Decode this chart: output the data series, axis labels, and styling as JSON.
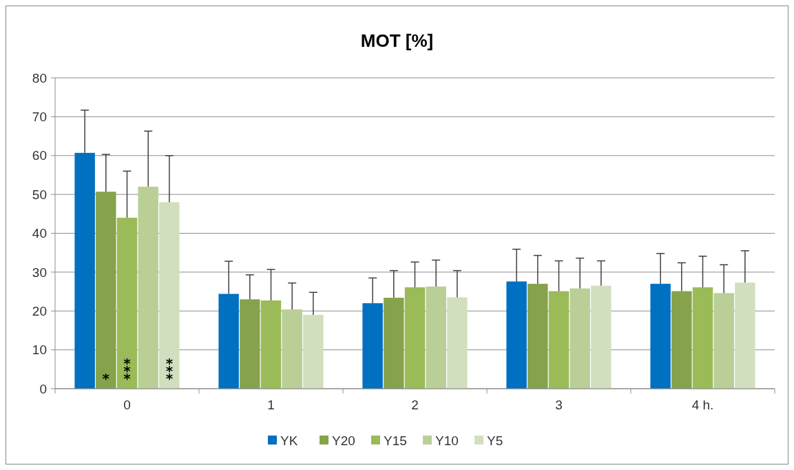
{
  "chart_data": {
    "type": "bar",
    "title": "MOT [%]",
    "categories": [
      "0",
      "1",
      "2",
      "3",
      "4 h."
    ],
    "ylim": [
      0,
      80
    ],
    "yticks": [
      0,
      10,
      20,
      30,
      40,
      50,
      60,
      70,
      80
    ],
    "grid": "y",
    "legend": "bottom",
    "series": [
      {
        "name": "YK",
        "color": "#0070c0",
        "values": [
          60.7,
          24.4,
          22,
          27.6,
          27
        ],
        "errors": [
          [
            60.7,
            71.7
          ],
          [
            24.4,
            32.8
          ],
          [
            22,
            28.5
          ],
          [
            27.6,
            35.9
          ],
          [
            27,
            34.8
          ]
        ]
      },
      {
        "name": "Y20",
        "color": "#86a34b",
        "values": [
          50.7,
          23,
          23.4,
          27,
          25.1
        ],
        "errors": [
          [
            50.7,
            60.3
          ],
          [
            23,
            29.3
          ],
          [
            23.4,
            30.4
          ],
          [
            27,
            34.3
          ],
          [
            25.1,
            32.4
          ]
        ],
        "value_labels": [
          "*",
          null,
          null,
          null,
          null
        ]
      },
      {
        "name": "Y15",
        "color": "#9bbb59",
        "values": [
          44,
          22.7,
          26.1,
          25.1,
          26.1
        ],
        "errors": [
          [
            44,
            56
          ],
          [
            22.7,
            30.7
          ],
          [
            26.1,
            32.6
          ],
          [
            25.1,
            32.9
          ],
          [
            26.1,
            34.1
          ]
        ],
        "value_labels": [
          "***",
          null,
          null,
          null,
          null
        ]
      },
      {
        "name": "Y10",
        "color": "#bacf96",
        "values": [
          52,
          20.4,
          26.3,
          25.8,
          24.6
        ],
        "errors": [
          [
            52,
            66.3
          ],
          [
            20.4,
            27.2
          ],
          [
            26.3,
            33.1
          ],
          [
            25.8,
            33.6
          ],
          [
            24.6,
            31.9
          ]
        ]
      },
      {
        "name": "Y5",
        "color": "#d2dfbf",
        "values": [
          48,
          19,
          23.5,
          26.5,
          27.3
        ],
        "errors": [
          [
            48,
            60
          ],
          [
            19,
            24.8
          ],
          [
            23.5,
            30.4
          ],
          [
            26.5,
            32.9
          ],
          [
            27.3,
            35.5
          ]
        ],
        "value_labels": [
          "***",
          null,
          null,
          null,
          null
        ]
      }
    ]
  }
}
